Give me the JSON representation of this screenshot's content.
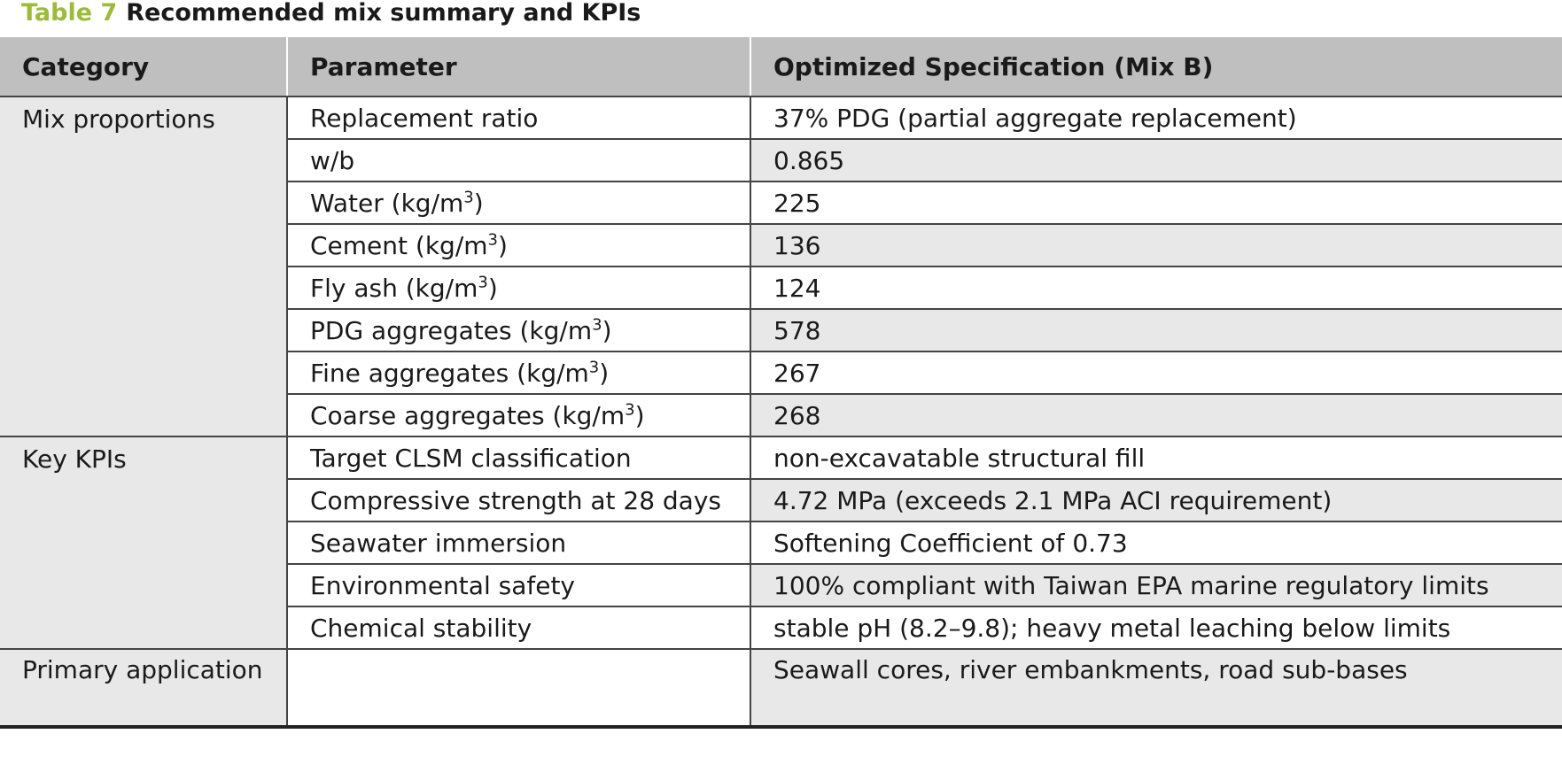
{
  "caption": {
    "label": "Table 7",
    "title": "Recommended mix summary and KPIs"
  },
  "colors": {
    "caption_label": "#9dbb3a",
    "header_bg": "#bfbfbf",
    "row_shade": "#e8e8e8"
  },
  "table": {
    "headers": [
      "Category",
      "Parameter",
      "Optimized Specification (Mix B)"
    ],
    "groups": [
      {
        "category": "Mix proportions",
        "rows": [
          {
            "parameter": "Replacement ratio",
            "value": "37% PDG (partial aggregate replacement)"
          },
          {
            "parameter": "w/b",
            "value": "0.865"
          },
          {
            "parameter": "Water (kg/m",
            "sup": "3",
            "suffix": ")",
            "value": "225"
          },
          {
            "parameter": "Cement (kg/m",
            "sup": "3",
            "suffix": ")",
            "value": "136"
          },
          {
            "parameter": "Fly ash (kg/m",
            "sup": "3",
            "suffix": ")",
            "value": "124"
          },
          {
            "parameter": "PDG aggregates (kg/m",
            "sup": "3",
            "suffix": ")",
            "value": "578"
          },
          {
            "parameter": "Fine aggregates (kg/m",
            "sup": "3",
            "suffix": ")",
            "value": "267"
          },
          {
            "parameter": "Coarse aggregates (kg/m",
            "sup": "3",
            "suffix": ")",
            "value": "268"
          }
        ]
      },
      {
        "category": "Key KPIs",
        "rows": [
          {
            "parameter": "Target CLSM classification",
            "value": "non-excavatable structural fill"
          },
          {
            "parameter": "Compressive strength at 28 days",
            "value": "4.72 MPa (exceeds 2.1 MPa ACI requirement)"
          },
          {
            "parameter": "Seawater immersion",
            "value": "Softening Coefficient of 0.73"
          },
          {
            "parameter": "Environmental safety",
            "value": "100% compliant with Taiwan EPA marine regulatory limits"
          },
          {
            "parameter": "Chemical stability",
            "value": "stable pH (8.2–9.8); heavy metal leaching below limits"
          }
        ]
      },
      {
        "category": "Primary application",
        "rows": [
          {
            "parameter": "",
            "value": "Seawall cores, river embankments, road sub-bases"
          }
        ]
      }
    ]
  }
}
